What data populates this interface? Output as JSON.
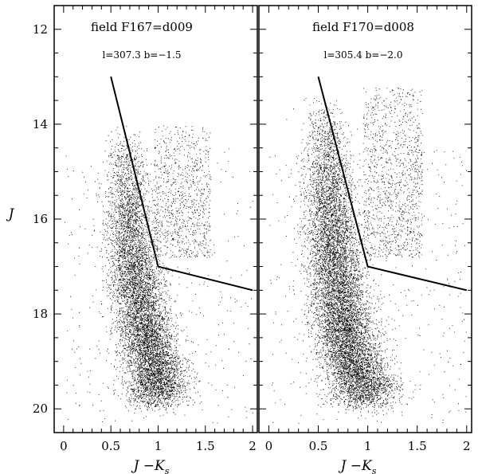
{
  "figure": {
    "ylabel": "J",
    "xlabel": "J −K",
    "xlabel_sub": "s"
  },
  "colors": {
    "ink": "#000000",
    "background": "#ffffff"
  },
  "chart_data": [
    {
      "type": "scatter",
      "title": "field F167=d009",
      "subtitle": "l=307.3 b=−1.5",
      "xlabel": "J −Ks",
      "ylabel": "J",
      "xlim": [
        -0.1,
        2.05
      ],
      "ylim": [
        20.5,
        11.5
      ],
      "y_inverted": true,
      "xticks": [
        0,
        0.5,
        1,
        1.5,
        2
      ],
      "xtick_labels": [
        "0",
        "0.5",
        "1",
        "1.5",
        "2"
      ],
      "yticks": [
        12,
        14,
        16,
        18,
        20
      ],
      "ytick_labels": [
        "12",
        "14",
        "16",
        "18",
        "20"
      ],
      "grid": false,
      "selection_line": [
        [
          0.5,
          13.0
        ],
        [
          1.0,
          17.0
        ],
        [
          2.0,
          17.5
        ]
      ],
      "point_count_approx": 60000,
      "main_sequence_ridge": [
        [
          0.65,
          14.2
        ],
        [
          0.68,
          15.5
        ],
        [
          0.72,
          16.5
        ],
        [
          0.78,
          17.5
        ],
        [
          0.88,
          18.5
        ],
        [
          0.98,
          19.3
        ]
      ],
      "red_clump_region": {
        "x_range": [
          0.95,
          1.55
        ],
        "y_range": [
          14.0,
          16.8
        ]
      }
    },
    {
      "type": "scatter",
      "title": "field F170=d008",
      "subtitle": "l=305.4 b=−2.0",
      "xlabel": "J −Ks",
      "ylabel": "J",
      "xlim": [
        -0.1,
        2.05
      ],
      "ylim": [
        20.5,
        11.5
      ],
      "y_inverted": true,
      "xticks": [
        0,
        0.5,
        1,
        1.5,
        2
      ],
      "xtick_labels": [
        "0",
        "0.5",
        "1",
        "1.5",
        "2"
      ],
      "yticks": [
        12,
        14,
        16,
        18,
        20
      ],
      "ytick_labels": [
        "12",
        "14",
        "16",
        "18",
        "20"
      ],
      "grid": false,
      "selection_line": [
        [
          0.5,
          13.0
        ],
        [
          1.0,
          17.0
        ],
        [
          2.0,
          17.5
        ]
      ],
      "point_count_approx": 75000,
      "main_sequence_ridge": [
        [
          0.55,
          13.5
        ],
        [
          0.6,
          15.0
        ],
        [
          0.65,
          16.5
        ],
        [
          0.72,
          17.8
        ],
        [
          0.82,
          18.8
        ],
        [
          0.95,
          19.5
        ]
      ],
      "red_clump_region": {
        "x_range": [
          0.95,
          1.55
        ],
        "y_range": [
          13.2,
          16.8
        ]
      }
    }
  ]
}
